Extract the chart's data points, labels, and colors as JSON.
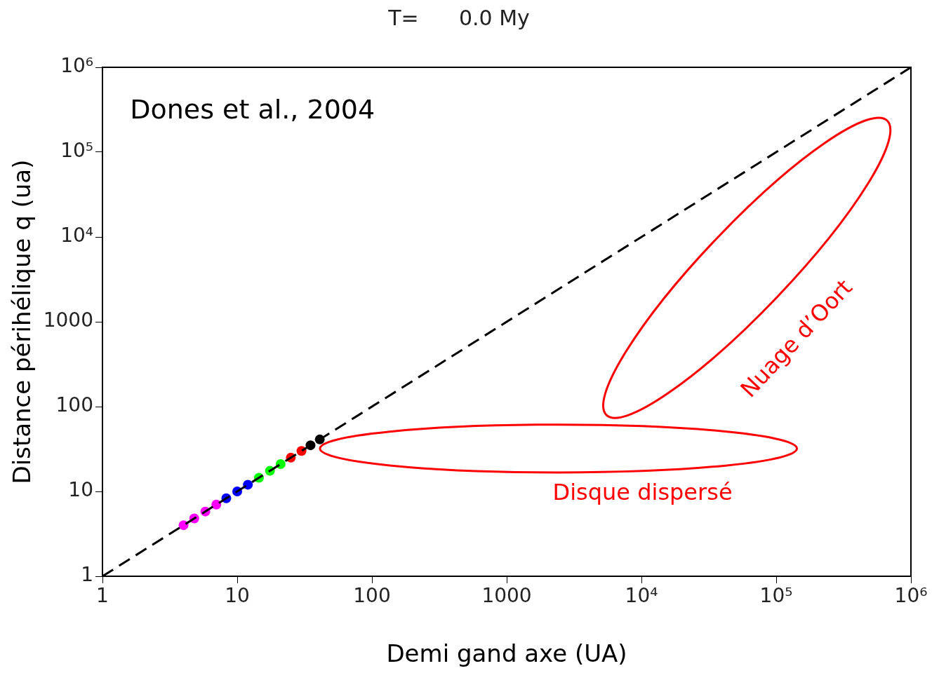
{
  "chart_data": {
    "type": "scatter",
    "title": "T=      0.0 My",
    "xlabel": "Demi gand axe (UA)",
    "ylabel": "Distance périhélique q (ua)",
    "log": "xy",
    "grid": false,
    "legend": false,
    "marker": "circle",
    "xlim": [
      1,
      1000000
    ],
    "ylim": [
      1,
      1000000
    ],
    "xticks": [
      1,
      10,
      100,
      1000,
      {
        "value": 10000,
        "label": "10⁴"
      },
      {
        "value": 100000,
        "label": "10⁵"
      },
      {
        "value": 1000000,
        "label": "10⁶"
      }
    ],
    "yticks": [
      {
        "value": 1,
        "label": "1"
      },
      10,
      100,
      1000,
      {
        "value": 10000,
        "label": "10⁴"
      },
      {
        "value": 100000,
        "label": "10⁵"
      },
      {
        "value": 1000000,
        "label": "10⁶"
      }
    ],
    "annotations": [
      "Dones et al., 2004",
      "Nuage d’Oort",
      "Disque dispersé"
    ],
    "series": [
      {
        "type": "line",
        "color": "#000000",
        "line_style": "dashed",
        "marker": "none",
        "x": [
          1,
          1000000
        ],
        "values": [
          1,
          1000000
        ]
      },
      {
        "color": "#ff00ff",
        "x": [
          4,
          4.8,
          5.8,
          7
        ],
        "values": [
          4,
          4.8,
          5.8,
          7
        ]
      },
      {
        "color": "#0000ff",
        "x": [
          8.3,
          10,
          12
        ],
        "values": [
          8.3,
          10,
          12
        ]
      },
      {
        "color": "#00ff00",
        "x": [
          14.5,
          17.5,
          21
        ],
        "values": [
          14.5,
          17.5,
          21
        ]
      },
      {
        "color": "#ff0000",
        "x": [
          25,
          30
        ],
        "values": [
          25,
          30
        ]
      },
      {
        "color": "#000000",
        "x": [
          35,
          41
        ],
        "values": [
          35,
          41
        ]
      }
    ]
  }
}
